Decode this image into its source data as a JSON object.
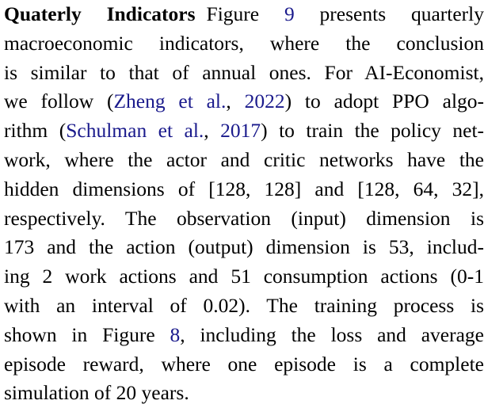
{
  "heading": "Quaterly Indicators",
  "line1_text": "Figure ",
  "fig9": "9",
  "line1_tail": " presents quarterly",
  "line2": "macroeconomic indicators, where the conclusion",
  "line3": "is similar to that of annual ones. For AI-Economist,",
  "line4_a": "we follow  (",
  "cite_zheng": "Zheng et al.",
  "line4_comma": ", ",
  "cite_zheng_year": "2022",
  "line4_b": ") to adopt PPO algo-",
  "line5_a": "rithm (",
  "cite_schulman": "Schulman et al.",
  "line5_comma": ", ",
  "cite_schulman_year": "2017",
  "line5_b": ") to train the policy net-",
  "line6": "work, where the actor and critic networks have the",
  "line7": "hidden dimensions of [128, 128] and [128, 64, 32],",
  "line8": "respectively. The observation (input) dimension is",
  "line9": "173 and the action (output) dimension is 53, includ-",
  "line10": "ing 2 work actions and 51 consumption actions (0-1",
  "line11": "with an interval of 0.02).  The training process is",
  "line12_a": "shown in Figure ",
  "fig8": "8",
  "line12_b": ", including the loss and average",
  "line13": "episode reward, where one episode is a complete",
  "line14": "simulation of 20 years."
}
